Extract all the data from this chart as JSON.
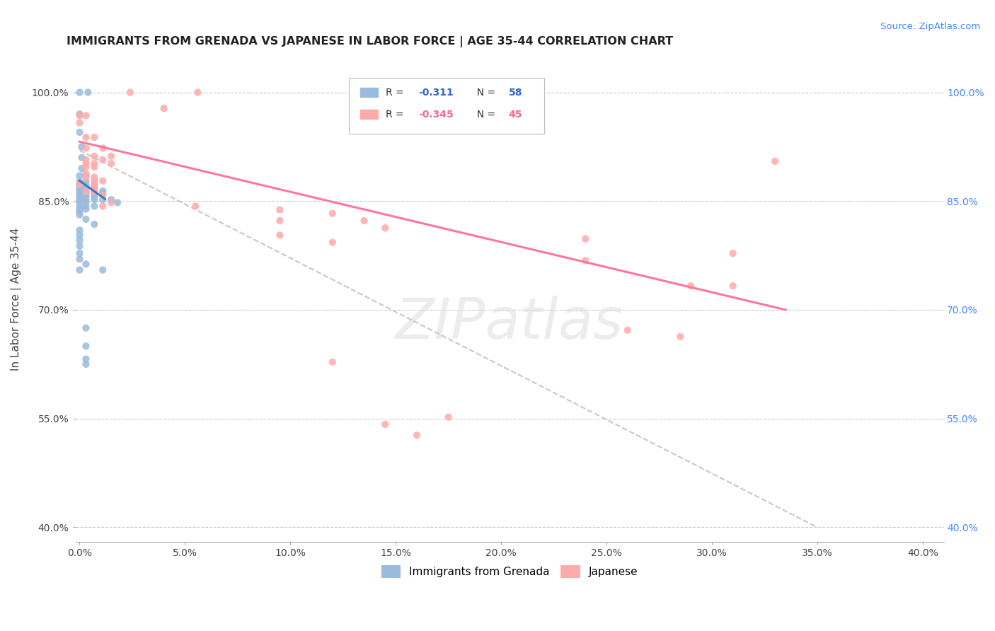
{
  "title": "IMMIGRANTS FROM GRENADA VS JAPANESE IN LABOR FORCE | AGE 35-44 CORRELATION CHART",
  "source": "Source: ZipAtlas.com",
  "ylabel": "In Labor Force | Age 35-44",
  "xlim": [
    -0.002,
    0.41
  ],
  "ylim": [
    0.38,
    1.05
  ],
  "xtick_positions": [
    0.0,
    0.05,
    0.1,
    0.15,
    0.2,
    0.25,
    0.3,
    0.35,
    0.4
  ],
  "xtick_labels": [
    "0.0%",
    "5.0%",
    "10.0%",
    "15.0%",
    "20.0%",
    "25.0%",
    "30.0%",
    "35.0%",
    "40.0%"
  ],
  "ytick_positions": [
    0.4,
    0.55,
    0.7,
    0.85,
    1.0
  ],
  "ytick_labels": [
    "40.0%",
    "55.0%",
    "70.0%",
    "85.0%",
    "100.0%"
  ],
  "blue_color": "#99BBDD",
  "pink_color": "#FFAAAA",
  "blue_line_color": "#4477BB",
  "pink_line_color": "#FF7799",
  "dashed_line_color": "#C8C8C8",
  "blue_scatter": [
    [
      0.0,
      1.0
    ],
    [
      0.004,
      1.0
    ],
    [
      0.0,
      0.97
    ],
    [
      0.0,
      0.945
    ],
    [
      0.001,
      0.925
    ],
    [
      0.001,
      0.91
    ],
    [
      0.001,
      0.895
    ],
    [
      0.0,
      0.885
    ],
    [
      0.003,
      0.885
    ],
    [
      0.0,
      0.877
    ],
    [
      0.003,
      0.877
    ],
    [
      0.0,
      0.872
    ],
    [
      0.003,
      0.872
    ],
    [
      0.007,
      0.872
    ],
    [
      0.0,
      0.868
    ],
    [
      0.003,
      0.868
    ],
    [
      0.007,
      0.868
    ],
    [
      0.0,
      0.864
    ],
    [
      0.003,
      0.864
    ],
    [
      0.007,
      0.864
    ],
    [
      0.011,
      0.864
    ],
    [
      0.0,
      0.86
    ],
    [
      0.003,
      0.86
    ],
    [
      0.007,
      0.86
    ],
    [
      0.011,
      0.86
    ],
    [
      0.0,
      0.856
    ],
    [
      0.003,
      0.856
    ],
    [
      0.007,
      0.856
    ],
    [
      0.0,
      0.852
    ],
    [
      0.003,
      0.852
    ],
    [
      0.007,
      0.852
    ],
    [
      0.011,
      0.852
    ],
    [
      0.015,
      0.852
    ],
    [
      0.0,
      0.848
    ],
    [
      0.003,
      0.848
    ],
    [
      0.018,
      0.848
    ],
    [
      0.0,
      0.843
    ],
    [
      0.003,
      0.843
    ],
    [
      0.007,
      0.843
    ],
    [
      0.0,
      0.839
    ],
    [
      0.003,
      0.839
    ],
    [
      0.0,
      0.835
    ],
    [
      0.0,
      0.831
    ],
    [
      0.003,
      0.825
    ],
    [
      0.007,
      0.818
    ],
    [
      0.0,
      0.81
    ],
    [
      0.0,
      0.803
    ],
    [
      0.0,
      0.796
    ],
    [
      0.0,
      0.788
    ],
    [
      0.0,
      0.778
    ],
    [
      0.0,
      0.77
    ],
    [
      0.003,
      0.763
    ],
    [
      0.0,
      0.755
    ],
    [
      0.011,
      0.755
    ],
    [
      0.003,
      0.675
    ],
    [
      0.003,
      0.65
    ],
    [
      0.003,
      0.632
    ],
    [
      0.003,
      0.625
    ]
  ],
  "pink_scatter": [
    [
      0.024,
      1.0
    ],
    [
      0.056,
      1.0
    ],
    [
      0.04,
      0.978
    ],
    [
      0.0,
      0.968
    ],
    [
      0.003,
      0.968
    ],
    [
      0.0,
      0.958
    ],
    [
      0.003,
      0.938
    ],
    [
      0.007,
      0.938
    ],
    [
      0.003,
      0.923
    ],
    [
      0.011,
      0.923
    ],
    [
      0.007,
      0.912
    ],
    [
      0.015,
      0.912
    ],
    [
      0.003,
      0.907
    ],
    [
      0.011,
      0.907
    ],
    [
      0.003,
      0.902
    ],
    [
      0.007,
      0.902
    ],
    [
      0.015,
      0.902
    ],
    [
      0.003,
      0.897
    ],
    [
      0.007,
      0.897
    ],
    [
      0.003,
      0.888
    ],
    [
      0.003,
      0.883
    ],
    [
      0.007,
      0.883
    ],
    [
      0.007,
      0.878
    ],
    [
      0.011,
      0.878
    ],
    [
      0.0,
      0.873
    ],
    [
      0.007,
      0.873
    ],
    [
      0.007,
      0.868
    ],
    [
      0.003,
      0.863
    ],
    [
      0.007,
      0.863
    ],
    [
      0.011,
      0.858
    ],
    [
      0.015,
      0.848
    ],
    [
      0.011,
      0.843
    ],
    [
      0.055,
      0.843
    ],
    [
      0.095,
      0.838
    ],
    [
      0.12,
      0.833
    ],
    [
      0.095,
      0.823
    ],
    [
      0.135,
      0.823
    ],
    [
      0.145,
      0.813
    ],
    [
      0.095,
      0.803
    ],
    [
      0.24,
      0.798
    ],
    [
      0.12,
      0.793
    ],
    [
      0.24,
      0.768
    ],
    [
      0.12,
      0.628
    ],
    [
      0.145,
      0.542
    ],
    [
      0.16,
      0.527
    ],
    [
      0.175,
      0.552
    ],
    [
      0.26,
      0.672
    ],
    [
      0.31,
      0.778
    ],
    [
      0.31,
      0.733
    ],
    [
      0.33,
      0.905
    ],
    [
      0.285,
      0.663
    ],
    [
      0.29,
      0.733
    ]
  ],
  "blue_trendline": [
    [
      0.0,
      0.878
    ],
    [
      0.012,
      0.853
    ]
  ],
  "pink_trendline": [
    [
      0.0,
      0.932
    ],
    [
      0.335,
      0.7
    ]
  ],
  "dashed_trendline": [
    [
      0.0,
      0.92
    ],
    [
      0.35,
      0.4
    ]
  ]
}
